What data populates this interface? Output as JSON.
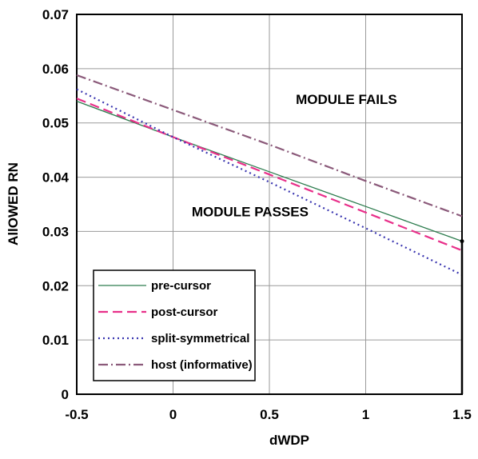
{
  "chart_data": {
    "type": "line",
    "xlabel": "dWDP",
    "ylabel": "AllOWED RN",
    "xlim": [
      -0.5,
      1.5
    ],
    "ylim": [
      0,
      0.07
    ],
    "x_ticks": [
      "-0.5",
      "0",
      "0.5",
      "1",
      "1.5"
    ],
    "y_ticks": [
      "0",
      "0.01",
      "0.02",
      "0.03",
      "0.04",
      "0.05",
      "0.06",
      "0.07"
    ],
    "grid": true,
    "legend_position": "bottom-left",
    "x": [
      -0.5,
      0,
      0.5,
      1,
      1.5
    ],
    "series": [
      {
        "name": "pre-cursor",
        "values": [
          0.054,
          0.0474,
          0.041,
          0.0346,
          0.0282
        ],
        "color": "#2e7d4f",
        "dash": "solid"
      },
      {
        "name": "post-cursor",
        "values": [
          0.0545,
          0.0474,
          0.0405,
          0.0335,
          0.0265
        ],
        "color": "#e8308a",
        "dash": "long-dash"
      },
      {
        "name": "split-symmetrical",
        "values": [
          0.0562,
          0.0474,
          0.0391,
          0.0306,
          0.022
        ],
        "color": "#3a36b0",
        "dash": "dot"
      },
      {
        "name": "host (informative)",
        "values": [
          0.0588,
          0.0524,
          0.046,
          0.0393,
          0.0328
        ],
        "color": "#8b5a7a",
        "dash": "dash-dot"
      }
    ],
    "annotations": [
      {
        "text": "MODULE FAILS",
        "x": 0.9,
        "y": 0.0535
      },
      {
        "text": "MODULE PASSES",
        "x": 0.4,
        "y": 0.0328
      }
    ],
    "marker_line": {
      "x": 1.5,
      "y_from": 0,
      "y_to": 0.0282
    }
  }
}
